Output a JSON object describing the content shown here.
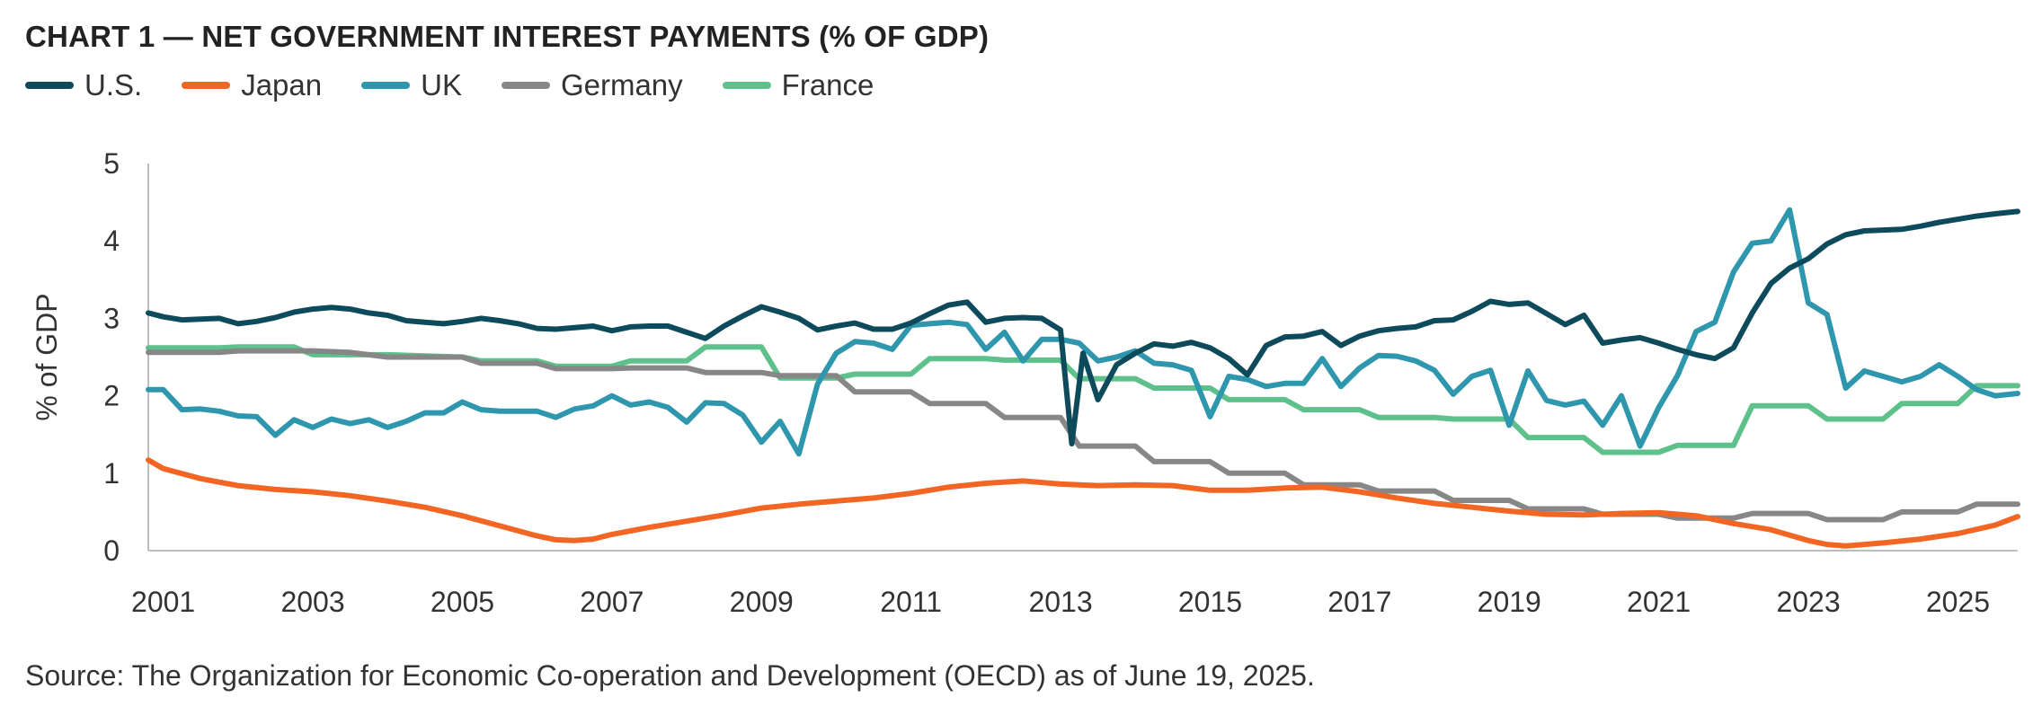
{
  "chart_data": {
    "type": "line",
    "title": "CHART 1 — NET GOVERNMENT INTEREST PAYMENTS (% OF GDP)",
    "ylabel": "% of GDP",
    "xlabel": "",
    "source": "Source: The Organization for Economic Co-operation and Development (OECD) as of June 19, 2025.",
    "xlim": [
      2000.8,
      2025.8
    ],
    "ylim": [
      0,
      5
    ],
    "yticks": [
      "0",
      "1",
      "2",
      "3",
      "4",
      "5"
    ],
    "xticks": [
      "2001",
      "2003",
      "2005",
      "2007",
      "2009",
      "2011",
      "2013",
      "2015",
      "2017",
      "2019",
      "2021",
      "2023",
      "2025"
    ],
    "grid": false,
    "legend_position": "top-left",
    "series": [
      {
        "name": "U.S.",
        "color": "#0d4a5c",
        "x": [
          2000.8,
          2001.0,
          2001.25,
          2001.5,
          2001.75,
          2002.0,
          2002.25,
          2002.5,
          2002.75,
          2003.0,
          2003.25,
          2003.5,
          2003.75,
          2004.0,
          2004.25,
          2004.5,
          2004.75,
          2005.0,
          2005.25,
          2005.5,
          2005.75,
          2006.0,
          2006.25,
          2006.5,
          2006.75,
          2007.0,
          2007.25,
          2007.5,
          2007.75,
          2008.0,
          2008.25,
          2008.5,
          2008.75,
          2009.0,
          2009.25,
          2009.5,
          2009.75,
          2010.0,
          2010.25,
          2010.5,
          2010.75,
          2011.0,
          2011.25,
          2011.5,
          2011.75,
          2012.0,
          2012.25,
          2012.5,
          2012.75,
          2013.0,
          2013.15,
          2013.3,
          2013.5,
          2013.75,
          2014.0,
          2014.25,
          2014.5,
          2014.75,
          2015.0,
          2015.25,
          2015.5,
          2015.75,
          2016.0,
          2016.25,
          2016.5,
          2016.75,
          2017.0,
          2017.25,
          2017.5,
          2017.75,
          2018.0,
          2018.25,
          2018.5,
          2018.75,
          2019.0,
          2019.25,
          2019.5,
          2019.75,
          2020.0,
          2020.25,
          2020.5,
          2020.75,
          2021.0,
          2021.25,
          2021.5,
          2021.75,
          2022.0,
          2022.25,
          2022.5,
          2022.75,
          2023.0,
          2023.25,
          2023.5,
          2023.75,
          2024.0,
          2024.25,
          2024.5,
          2024.75,
          2025.0,
          2025.25,
          2025.5,
          2025.8
        ],
        "values": [
          3.07,
          3.02,
          2.98,
          2.99,
          3.0,
          2.93,
          2.96,
          3.01,
          3.08,
          3.12,
          3.14,
          3.12,
          3.07,
          3.04,
          2.97,
          2.95,
          2.93,
          2.96,
          3.0,
          2.97,
          2.93,
          2.87,
          2.86,
          2.88,
          2.9,
          2.84,
          2.89,
          2.9,
          2.9,
          2.82,
          2.74,
          2.9,
          3.03,
          3.15,
          3.08,
          3.0,
          2.85,
          2.9,
          2.94,
          2.86,
          2.86,
          2.94,
          3.06,
          3.17,
          3.21,
          2.95,
          3.0,
          3.01,
          3.0,
          2.85,
          1.38,
          2.55,
          1.95,
          2.4,
          2.55,
          2.67,
          2.64,
          2.69,
          2.62,
          2.48,
          2.27,
          2.65,
          2.76,
          2.77,
          2.83,
          2.65,
          2.77,
          2.84,
          2.87,
          2.89,
          2.97,
          2.98,
          3.09,
          3.22,
          3.18,
          3.2,
          3.06,
          2.92,
          3.04,
          2.68,
          2.72,
          2.75,
          2.68,
          2.6,
          2.53,
          2.48,
          2.62,
          3.07,
          3.45,
          3.65,
          3.77,
          3.96,
          4.08,
          4.13,
          4.14,
          4.15,
          4.19,
          4.24,
          4.28,
          4.32,
          4.35,
          4.38
        ]
      },
      {
        "name": "Japan",
        "color": "#f26522",
        "x": [
          2000.8,
          2001.0,
          2001.5,
          2002.0,
          2002.5,
          2003.0,
          2003.5,
          2004.0,
          2004.5,
          2005.0,
          2005.5,
          2006.0,
          2006.25,
          2006.5,
          2006.75,
          2007.0,
          2007.5,
          2008.0,
          2008.5,
          2009.0,
          2009.5,
          2010.0,
          2010.5,
          2011.0,
          2011.5,
          2012.0,
          2012.5,
          2013.0,
          2013.5,
          2014.0,
          2014.5,
          2015.0,
          2015.5,
          2016.0,
          2016.5,
          2017.0,
          2017.5,
          2018.0,
          2018.5,
          2019.0,
          2019.5,
          2020.0,
          2020.5,
          2021.0,
          2021.5,
          2022.0,
          2022.5,
          2023.0,
          2023.25,
          2023.5,
          2023.75,
          2024.0,
          2024.5,
          2025.0,
          2025.5,
          2025.8
        ],
        "values": [
          1.17,
          1.06,
          0.93,
          0.84,
          0.79,
          0.76,
          0.71,
          0.64,
          0.56,
          0.45,
          0.32,
          0.19,
          0.14,
          0.13,
          0.15,
          0.21,
          0.3,
          0.38,
          0.46,
          0.55,
          0.6,
          0.64,
          0.68,
          0.74,
          0.82,
          0.87,
          0.9,
          0.86,
          0.84,
          0.85,
          0.84,
          0.78,
          0.78,
          0.81,
          0.82,
          0.76,
          0.68,
          0.61,
          0.56,
          0.51,
          0.47,
          0.46,
          0.48,
          0.49,
          0.45,
          0.35,
          0.27,
          0.13,
          0.08,
          0.06,
          0.08,
          0.1,
          0.15,
          0.22,
          0.33,
          0.44
        ]
      },
      {
        "name": "UK",
        "color": "#2e97ad",
        "x": [
          2000.8,
          2001.0,
          2001.25,
          2001.5,
          2001.75,
          2002.0,
          2002.25,
          2002.5,
          2002.75,
          2003.0,
          2003.25,
          2003.5,
          2003.75,
          2004.0,
          2004.25,
          2004.5,
          2004.75,
          2005.0,
          2005.25,
          2005.5,
          2005.75,
          2006.0,
          2006.25,
          2006.5,
          2006.75,
          2007.0,
          2007.25,
          2007.5,
          2007.75,
          2008.0,
          2008.25,
          2008.5,
          2008.75,
          2009.0,
          2009.25,
          2009.5,
          2009.75,
          2010.0,
          2010.25,
          2010.5,
          2010.75,
          2011.0,
          2011.25,
          2011.5,
          2011.75,
          2012.0,
          2012.25,
          2012.5,
          2012.75,
          2013.0,
          2013.25,
          2013.5,
          2013.75,
          2014.0,
          2014.25,
          2014.5,
          2014.75,
          2015.0,
          2015.25,
          2015.5,
          2015.75,
          2016.0,
          2016.25,
          2016.5,
          2016.75,
          2017.0,
          2017.25,
          2017.5,
          2017.75,
          2018.0,
          2018.25,
          2018.5,
          2018.75,
          2019.0,
          2019.25,
          2019.5,
          2019.75,
          2020.0,
          2020.25,
          2020.5,
          2020.75,
          2021.0,
          2021.25,
          2021.5,
          2021.75,
          2022.0,
          2022.25,
          2022.5,
          2022.75,
          2023.0,
          2023.25,
          2023.5,
          2023.75,
          2024.0,
          2024.25,
          2024.5,
          2024.75,
          2025.0,
          2025.25,
          2025.5,
          2025.8
        ],
        "values": [
          2.08,
          2.08,
          1.82,
          1.83,
          1.8,
          1.74,
          1.73,
          1.49,
          1.69,
          1.59,
          1.7,
          1.64,
          1.69,
          1.59,
          1.67,
          1.78,
          1.78,
          1.92,
          1.82,
          1.8,
          1.8,
          1.8,
          1.72,
          1.83,
          1.87,
          2.0,
          1.88,
          1.92,
          1.85,
          1.66,
          1.91,
          1.9,
          1.75,
          1.4,
          1.67,
          1.25,
          2.15,
          2.55,
          2.7,
          2.68,
          2.6,
          2.91,
          2.93,
          2.95,
          2.92,
          2.6,
          2.82,
          2.45,
          2.73,
          2.73,
          2.68,
          2.45,
          2.5,
          2.58,
          2.42,
          2.4,
          2.33,
          1.73,
          2.25,
          2.21,
          2.12,
          2.16,
          2.16,
          2.48,
          2.12,
          2.36,
          2.52,
          2.51,
          2.45,
          2.33,
          2.02,
          2.25,
          2.33,
          1.62,
          2.32,
          1.94,
          1.88,
          1.93,
          1.62,
          2.0,
          1.35,
          1.85,
          2.26,
          2.83,
          2.95,
          3.6,
          3.97,
          4.0,
          4.4,
          3.2,
          3.05,
          2.1,
          2.32,
          2.25,
          2.18,
          2.25,
          2.4,
          2.25,
          2.08,
          2.0,
          2.03
        ]
      },
      {
        "name": "Germany",
        "color": "#878787",
        "x": [
          2000.8,
          2001.75,
          2002.0,
          2003.0,
          2003.5,
          2004.0,
          2005.0,
          2005.25,
          2006.0,
          2006.25,
          2007.0,
          2007.25,
          2008.0,
          2008.25,
          2009.0,
          2009.25,
          2010.0,
          2010.25,
          2011.0,
          2011.25,
          2012.0,
          2012.25,
          2013.0,
          2013.25,
          2014.0,
          2014.25,
          2015.0,
          2015.25,
          2016.0,
          2016.25,
          2017.0,
          2017.25,
          2018.0,
          2018.25,
          2019.0,
          2019.25,
          2020.0,
          2020.25,
          2021.0,
          2021.25,
          2022.0,
          2022.25,
          2023.0,
          2023.25,
          2024.0,
          2024.25,
          2025.0,
          2025.25,
          2025.8
        ],
        "values": [
          2.56,
          2.56,
          2.58,
          2.58,
          2.56,
          2.5,
          2.5,
          2.42,
          2.42,
          2.35,
          2.35,
          2.36,
          2.36,
          2.3,
          2.3,
          2.26,
          2.26,
          2.05,
          2.05,
          1.9,
          1.9,
          1.72,
          1.72,
          1.35,
          1.35,
          1.15,
          1.15,
          1.0,
          1.0,
          0.85,
          0.85,
          0.77,
          0.77,
          0.65,
          0.65,
          0.54,
          0.54,
          0.47,
          0.47,
          0.42,
          0.42,
          0.48,
          0.48,
          0.4,
          0.4,
          0.5,
          0.5,
          0.6,
          0.6
        ]
      },
      {
        "name": "France",
        "color": "#5ec08a",
        "x": [
          2000.8,
          2001.75,
          2002.0,
          2002.75,
          2003.0,
          2004.0,
          2005.0,
          2005.25,
          2006.0,
          2006.25,
          2007.0,
          2007.25,
          2008.0,
          2008.25,
          2009.0,
          2009.25,
          2010.0,
          2010.25,
          2011.0,
          2011.25,
          2012.0,
          2012.25,
          2013.0,
          2013.25,
          2014.0,
          2014.25,
          2015.0,
          2015.25,
          2016.0,
          2016.25,
          2017.0,
          2017.25,
          2018.0,
          2018.25,
          2019.0,
          2019.25,
          2020.0,
          2020.25,
          2021.0,
          2021.25,
          2022.0,
          2022.25,
          2023.0,
          2023.25,
          2024.0,
          2024.25,
          2025.0,
          2025.25,
          2025.8
        ],
        "values": [
          2.62,
          2.62,
          2.63,
          2.63,
          2.53,
          2.53,
          2.5,
          2.45,
          2.45,
          2.38,
          2.38,
          2.45,
          2.45,
          2.63,
          2.63,
          2.23,
          2.23,
          2.28,
          2.28,
          2.48,
          2.48,
          2.46,
          2.46,
          2.22,
          2.22,
          2.1,
          2.1,
          1.95,
          1.95,
          1.82,
          1.82,
          1.72,
          1.72,
          1.7,
          1.7,
          1.46,
          1.46,
          1.27,
          1.27,
          1.36,
          1.36,
          1.87,
          1.87,
          1.7,
          1.7,
          1.9,
          1.9,
          2.13,
          2.13
        ]
      }
    ]
  }
}
